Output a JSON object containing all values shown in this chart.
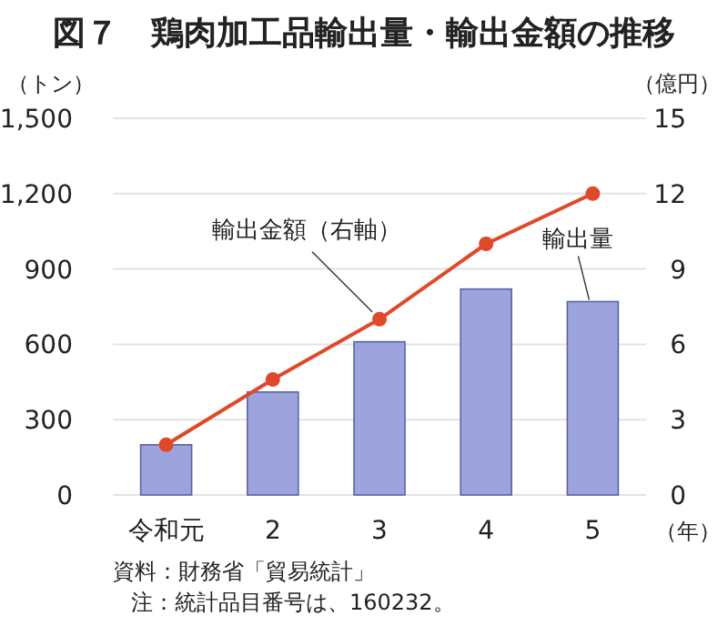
{
  "chart_data": {
    "type": "bar",
    "title": "図７　鶏肉加工品輸出量・輸出金額の推移",
    "xlabel": "（年）",
    "ylabel": "（トン）",
    "y2label": "（億円）",
    "categories": [
      "令和元",
      "2",
      "3",
      "4",
      "5"
    ],
    "series": [
      {
        "name": "輸出量",
        "color": "#9da3dc",
        "values": [
          200,
          410,
          610,
          820,
          770
        ]
      },
      {
        "name": "輸出金額（右軸）",
        "type": "line",
        "axis": "y2",
        "color": "#e0482a",
        "marker": "circle",
        "values": [
          2.0,
          4.6,
          7.0,
          10.0,
          12.0
        ]
      }
    ],
    "ylim": [
      0,
      1500
    ],
    "yticks": [
      0,
      300,
      600,
      900,
      {
        "value": 1200,
        "label": "1,200"
      },
      {
        "value": 1500,
        "label": "1,500"
      }
    ],
    "y2lim": [
      0,
      15
    ],
    "y2ticks": [
      0,
      3,
      6,
      9,
      12,
      15
    ],
    "grid": "y",
    "legend": false,
    "annotations": [
      "資料：財務省「貿易統計」",
      "注：統計品目番号は、160232。"
    ]
  }
}
